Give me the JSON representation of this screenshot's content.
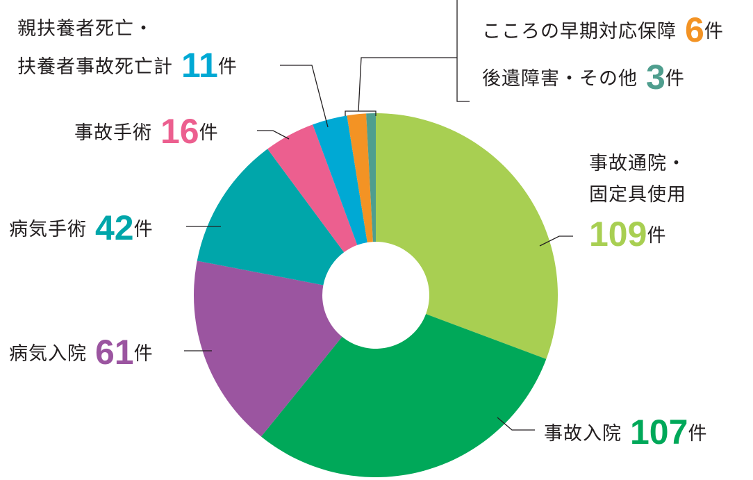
{
  "chart_data": {
    "type": "pie",
    "subtype": "donut",
    "title": "",
    "unit": "件",
    "start_angle_deg": 0,
    "direction": "clockwise",
    "categories": [
      "事故通院・固定具使用",
      "事故入院",
      "病気入院",
      "病気手術",
      "事故手術",
      "親扶養者死亡・扶養者事故死亡計",
      "こころの早期対応保障",
      "後遺障害・その他"
    ],
    "values": [
      109,
      107,
      61,
      42,
      16,
      11,
      6,
      3
    ],
    "colors": [
      "#a8cf52",
      "#00a859",
      "#9b55a0",
      "#00a6aa",
      "#ec5f8f",
      "#00a9d4",
      "#f39324",
      "#4f9e8e"
    ],
    "total": 355
  },
  "labels": {
    "accident_outpatient": {
      "line1": "事故通院・",
      "line2": "固定具使用",
      "value": "109",
      "unit": "件",
      "color": "#a8cf52"
    },
    "accident_hospital": {
      "text": "事故入院",
      "value": "107",
      "unit": "件",
      "color": "#00a859"
    },
    "illness_hospital": {
      "text": "病気入院",
      "value": "61",
      "unit": "件",
      "color": "#9b55a0"
    },
    "illness_surgery": {
      "text": "病気手術",
      "value": "42",
      "unit": "件",
      "color": "#00a6aa"
    },
    "accident_surgery": {
      "text": "事故手術",
      "value": "16",
      "unit": "件",
      "color": "#ec5f8f"
    },
    "parent_death": {
      "line1": "親扶養者死亡・",
      "line2": "扶養者事故死亡計",
      "value": "11",
      "unit": "件",
      "color": "#00a9d4"
    },
    "mental_care": {
      "text": "こころの早期対応保障",
      "value": "6",
      "unit": "件",
      "color": "#f39324"
    },
    "aftereffect": {
      "text": "後遺障害・その他",
      "value": "3",
      "unit": "件",
      "color": "#4f9e8e"
    }
  }
}
